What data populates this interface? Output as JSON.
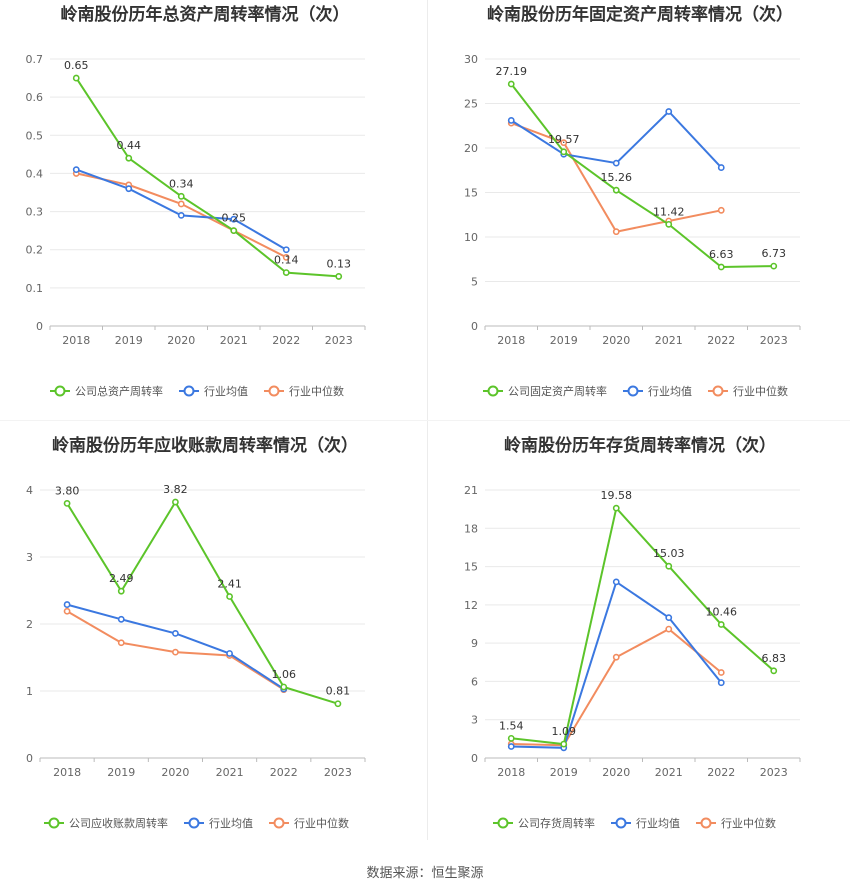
{
  "source_text": "数据来源：恒生聚源",
  "colors": {
    "company": "#5cc42a",
    "avg": "#3b78e0",
    "median": "#f28c5f",
    "grid": "#e9e9e9",
    "axis": "#999999",
    "text": "#666666"
  },
  "chart_data": [
    {
      "type": "line",
      "title": "岭南股份历年总资产周转率情况（次）",
      "categories": [
        "2018",
        "2019",
        "2020",
        "2021",
        "2022",
        "2023"
      ],
      "ylim": [
        0,
        0.7
      ],
      "yticks": [
        "0",
        "0.1",
        "0.2",
        "0.3",
        "0.4",
        "0.5",
        "0.6",
        "0.7"
      ],
      "series": [
        {
          "name": "公司总资产周转率",
          "key": "company",
          "values": [
            0.65,
            0.44,
            0.34,
            0.25,
            0.14,
            0.13
          ],
          "labels": [
            "0.65",
            "0.44",
            "0.34",
            "0.25",
            "0.14",
            "0.13"
          ]
        },
        {
          "name": "行业均值",
          "key": "avg",
          "values": [
            0.41,
            0.36,
            0.29,
            0.28,
            0.2,
            null
          ]
        },
        {
          "name": "行业中位数",
          "key": "median",
          "values": [
            0.4,
            0.37,
            0.32,
            0.25,
            0.18,
            null
          ]
        }
      ]
    },
    {
      "type": "line",
      "title": "岭南股份历年固定资产周转率情况（次）",
      "categories": [
        "2018",
        "2019",
        "2020",
        "2021",
        "2022",
        "2023"
      ],
      "ylim": [
        0,
        30
      ],
      "yticks": [
        "0",
        "5",
        "10",
        "15",
        "20",
        "25",
        "30"
      ],
      "series": [
        {
          "name": "公司固定资产周转率",
          "key": "company",
          "values": [
            27.19,
            19.57,
            15.26,
            11.42,
            6.63,
            6.73
          ],
          "labels": [
            "27.19",
            "19.57",
            "15.26",
            "11.42",
            "6.63",
            "6.73"
          ]
        },
        {
          "name": "行业均值",
          "key": "avg",
          "values": [
            23.1,
            19.3,
            18.3,
            24.1,
            17.8,
            null
          ]
        },
        {
          "name": "行业中位数",
          "key": "median",
          "values": [
            22.8,
            20.6,
            10.6,
            11.8,
            13.0,
            null
          ]
        }
      ]
    },
    {
      "type": "line",
      "title": "岭南股份历年应收账款周转率情况（次）",
      "categories": [
        "2018",
        "2019",
        "2020",
        "2021",
        "2022",
        "2023"
      ],
      "ylim": [
        0,
        4
      ],
      "yticks": [
        "0",
        "1",
        "2",
        "3",
        "4"
      ],
      "series": [
        {
          "name": "公司应收账款周转率",
          "key": "company",
          "values": [
            3.8,
            2.49,
            3.82,
            2.41,
            1.06,
            0.81
          ],
          "labels": [
            "3.80",
            "2.49",
            "3.82",
            "2.41",
            "1.06",
            "0.81"
          ]
        },
        {
          "name": "行业均值",
          "key": "avg",
          "values": [
            2.29,
            2.07,
            1.86,
            1.56,
            1.03,
            null
          ]
        },
        {
          "name": "行业中位数",
          "key": "median",
          "values": [
            2.19,
            1.72,
            1.58,
            1.53,
            1.02,
            null
          ]
        }
      ]
    },
    {
      "type": "line",
      "title": "岭南股份历年存货周转率情况（次）",
      "categories": [
        "2018",
        "2019",
        "2020",
        "2021",
        "2022",
        "2023"
      ],
      "ylim": [
        0,
        21
      ],
      "yticks": [
        "0",
        "3",
        "6",
        "9",
        "12",
        "15",
        "18",
        "21"
      ],
      "series": [
        {
          "name": "公司存货周转率",
          "key": "company",
          "values": [
            1.54,
            1.09,
            19.58,
            15.03,
            10.46,
            6.83
          ],
          "labels": [
            "1.54",
            "1.09",
            "19.58",
            "15.03",
            "10.46",
            "6.83"
          ]
        },
        {
          "name": "行业均值",
          "key": "avg",
          "values": [
            0.9,
            0.8,
            13.8,
            11.0,
            5.9,
            null
          ]
        },
        {
          "name": "行业中位数",
          "key": "median",
          "values": [
            1.1,
            1.0,
            7.9,
            10.1,
            6.7,
            null
          ]
        }
      ]
    }
  ]
}
